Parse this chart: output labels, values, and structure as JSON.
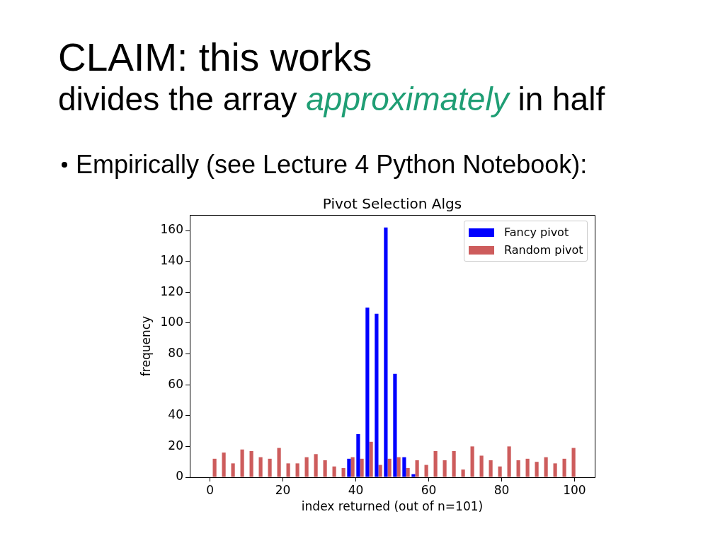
{
  "chart_data": {
    "type": "histogram",
    "title": "Pivot Selection Algs",
    "xlabel": "index returned (out of n=101)",
    "ylabel": "frequency",
    "annotations": [
      "CLAIM: this works",
      "divides the array",
      "approximately",
      "in half",
      "Empirically (see Lecture 4 Python Notebook):"
    ],
    "bins": [
      -0.5,
      2.025,
      4.55,
      7.075,
      9.6,
      12.125,
      14.65,
      17.175,
      19.7,
      22.225,
      24.75,
      27.275,
      29.8,
      32.325,
      34.85,
      37.375,
      39.9,
      42.425,
      44.95,
      47.475,
      50,
      52.525,
      55.05,
      57.575,
      60.1,
      62.625,
      65.15,
      67.675,
      70.2,
      72.725,
      75.25,
      77.775,
      80.3,
      82.825,
      85.35,
      87.875,
      90.4,
      92.925,
      95.45,
      97.975,
      100.5
    ],
    "series": [
      {
        "name": "Fancy pivot",
        "color": "#0000ff",
        "values": [
          0,
          0,
          0,
          0,
          0,
          0,
          0,
          0,
          0,
          0,
          0,
          0,
          0,
          0,
          0,
          12,
          28,
          110,
          106,
          162,
          67,
          13,
          2,
          0,
          0,
          0,
          0,
          0,
          0,
          0,
          0,
          0,
          0,
          0,
          0,
          0,
          0,
          0,
          0,
          0
        ]
      },
      {
        "name": "Random pivot",
        "color": "#cd5c5c",
        "values": [
          12,
          16,
          9,
          18,
          17,
          13,
          12,
          19,
          9,
          9,
          13,
          15,
          11,
          7,
          6,
          13,
          12,
          23,
          8,
          12,
          13,
          6,
          11,
          8,
          17,
          11,
          17,
          5,
          20,
          14,
          11,
          7,
          20,
          11,
          12,
          10,
          13,
          9,
          12,
          19
        ]
      }
    ],
    "xlim": [
      -5.55,
      105.55
    ],
    "xticks": [
      0,
      20,
      40,
      60,
      80,
      100
    ],
    "ylim": [
      0,
      170.1
    ],
    "yticks": [
      0,
      20,
      40,
      60,
      80,
      100,
      120,
      140,
      160
    ],
    "legend": "top right"
  }
}
